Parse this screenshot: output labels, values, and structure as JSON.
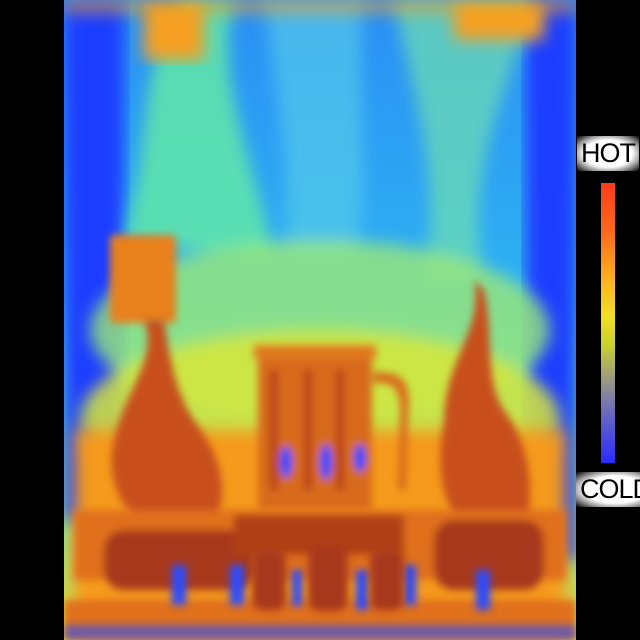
{
  "legend": {
    "hot_label": "HOT",
    "cold_label": "COLD",
    "gradient_top_color": "#ff3b1a",
    "gradient_bottom_color": "#2a2aff"
  },
  "palette": {
    "cold": "#1a3cff",
    "cool": "#2a9af0",
    "mild": "#4ee0c0",
    "warm": "#d8e830",
    "hot": "#f59a1a",
    "hottest": "#c83a10"
  }
}
